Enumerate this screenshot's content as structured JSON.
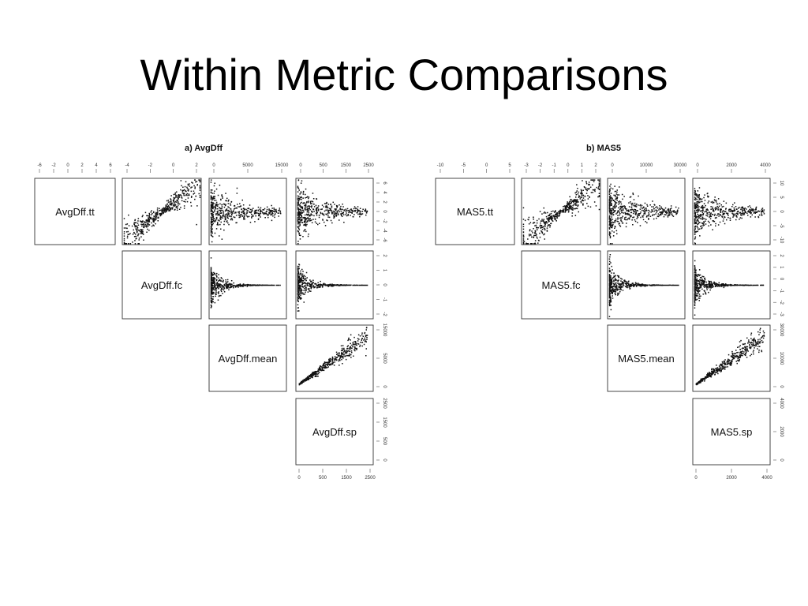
{
  "slide": {
    "title": "Within Metric Comparisons"
  },
  "chart_data": [
    {
      "type": "scatter",
      "title": "a) AvgDff",
      "variables": [
        "AvgDff.tt",
        "AvgDff.fc",
        "AvgDff.mean",
        "AvgDff.sp"
      ],
      "top_ticks": [
        [
          "-6",
          "-2",
          "0",
          "2",
          "4",
          "6"
        ],
        [
          "-4",
          "-2",
          "0",
          "2"
        ],
        [
          "0",
          "5000",
          "15000"
        ],
        [
          "0",
          "500",
          "1500",
          "2500"
        ]
      ],
      "right_ticks": [
        [
          "6",
          "4",
          "2",
          "0",
          "-2",
          "-4",
          "-6"
        ],
        [
          "2",
          "1",
          "0",
          "-1",
          "-2"
        ],
        [
          "15000",
          "5000",
          "0"
        ],
        [
          "2500",
          "1500",
          "500",
          "0"
        ]
      ],
      "bottom_ticks": [
        "0",
        "500",
        "1500",
        "2500"
      ]
    },
    {
      "type": "scatter",
      "title": "b) MAS5",
      "variables": [
        "MAS5.tt",
        "MAS5.fc",
        "MAS5.mean",
        "MAS5.sp"
      ],
      "top_ticks": [
        [
          "-10",
          "-5",
          "0",
          "5"
        ],
        [
          "-3",
          "-2",
          "-1",
          "0",
          "1",
          "2"
        ],
        [
          "0",
          "10000",
          "30000"
        ],
        [
          "0",
          "2000",
          "4000"
        ]
      ],
      "right_ticks": [
        [
          "10",
          "5",
          "0",
          "-5",
          "-10"
        ],
        [
          "2",
          "1",
          "0",
          "-1",
          "-2",
          "-3"
        ],
        [
          "30000",
          "10000",
          "0"
        ],
        [
          "4000",
          "2000",
          "0"
        ]
      ],
      "bottom_ticks": [
        "0",
        "2000",
        "4000"
      ]
    }
  ]
}
